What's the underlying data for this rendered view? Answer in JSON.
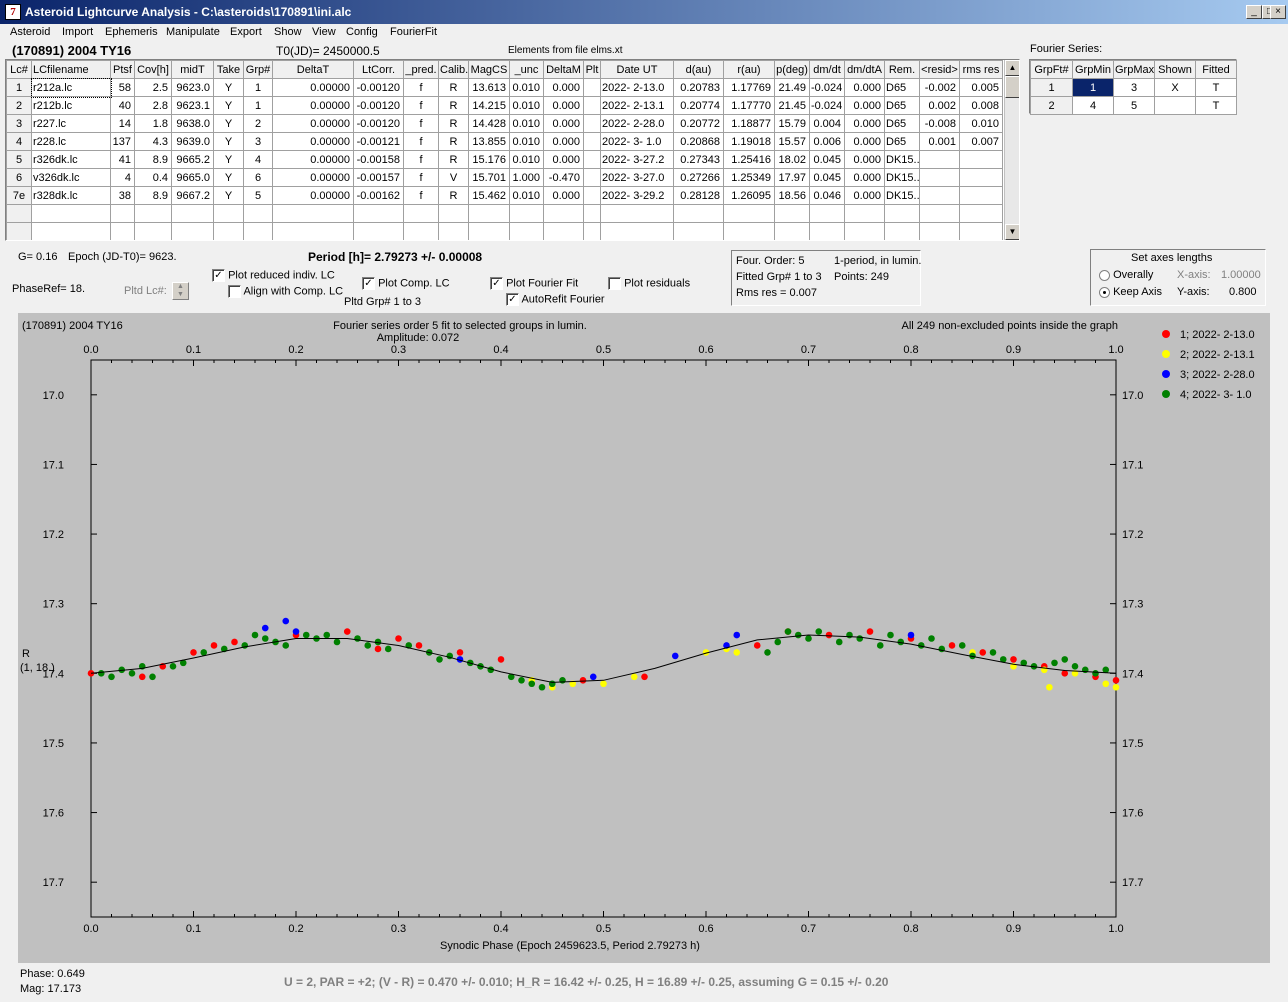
{
  "window": {
    "title": "Asteroid Lightcurve Analysis - C:\\asteroids\\170891\\ini.alc",
    "icon_letter": "7"
  },
  "menu": [
    "Asteroid",
    "Import",
    "Ephemeris",
    "Manipulate",
    "Export",
    "Show",
    "View",
    "Config",
    "FourierFit"
  ],
  "header": {
    "asteroid": "(170891) 2004 TY16",
    "t0": "T0(JD)= 2450000.5",
    "elements": "Elements from file elms.xt"
  },
  "lc_table": {
    "columns": [
      "Lc#",
      "LCfilename",
      "Ptsf",
      "Cov[h]",
      "midT",
      "Take",
      "Grp#",
      "DeltaT",
      "LtCorr.",
      "_pred.",
      "Calib.",
      "MagCS",
      "_unc",
      "DeltaM",
      "Plt",
      "Date UT",
      "d(au)",
      "r(au)",
      "p(deg)",
      "dm/dt",
      "dm/dtA",
      "Rem.",
      "<resid>",
      "rms res"
    ],
    "rows": [
      [
        "1",
        "r212a.lc",
        "58",
        "2.5",
        "9623.0",
        "Y",
        "1",
        "0.00000",
        "-0.00120",
        "f",
        "R",
        "13.613",
        "0.010",
        "0.000",
        "",
        "2022- 2-13.0",
        "0.20783",
        "1.17769",
        "21.49",
        "-0.024",
        "0.000",
        "D65",
        "-0.002",
        "0.005"
      ],
      [
        "2",
        "r212b.lc",
        "40",
        "2.8",
        "9623.1",
        "Y",
        "1",
        "0.00000",
        "-0.00120",
        "f",
        "R",
        "14.215",
        "0.010",
        "0.000",
        "",
        "2022- 2-13.1",
        "0.20774",
        "1.17770",
        "21.45",
        "-0.024",
        "0.000",
        "D65",
        "0.002",
        "0.008"
      ],
      [
        "3",
        "r227.lc",
        "14",
        "1.8",
        "9638.0",
        "Y",
        "2",
        "0.00000",
        "-0.00120",
        "f",
        "R",
        "14.428",
        "0.010",
        "0.000",
        "",
        "2022- 2-28.0",
        "0.20772",
        "1.18877",
        "15.79",
        "0.004",
        "0.000",
        "D65",
        "-0.008",
        "0.010"
      ],
      [
        "4",
        "r228.lc",
        "137",
        "4.3",
        "9639.0",
        "Y",
        "3",
        "0.00000",
        "-0.00121",
        "f",
        "R",
        "13.855",
        "0.010",
        "0.000",
        "",
        "2022- 3- 1.0",
        "0.20868",
        "1.19018",
        "15.57",
        "0.006",
        "0.000",
        "D65",
        "0.001",
        "0.007"
      ],
      [
        "5",
        "r326dk.lc",
        "41",
        "8.9",
        "9665.2",
        "Y",
        "4",
        "0.00000",
        "-0.00158",
        "f",
        "R",
        "15.176",
        "0.010",
        "0.000",
        "",
        "2022- 3-27.2",
        "0.27343",
        "1.25416",
        "18.02",
        "0.045",
        "0.000",
        "DK15..",
        "",
        ""
      ],
      [
        "6",
        "v326dk.lc",
        "4",
        "0.4",
        "9665.0",
        "Y",
        "6",
        "0.00000",
        "-0.00157",
        "f",
        "V",
        "15.701",
        "1.000",
        "-0.470",
        "",
        "2022- 3-27.0",
        "0.27266",
        "1.25349",
        "17.97",
        "0.045",
        "0.000",
        "DK15..",
        "",
        ""
      ],
      [
        "7e",
        "r328dk.lc",
        "38",
        "8.9",
        "9667.2",
        "Y",
        "5",
        "0.00000",
        "-0.00162",
        "f",
        "R",
        "15.462",
        "0.010",
        "0.000",
        "",
        "2022- 3-29.2",
        "0.28128",
        "1.26095",
        "18.56",
        "0.046",
        "0.000",
        "DK15..",
        "",
        ""
      ]
    ]
  },
  "fourier_series": {
    "title": "Fourier Series:",
    "columns": [
      "GrpFt#",
      "GrpMin",
      "GrpMax",
      "Shown",
      "Fitted"
    ],
    "rows": [
      [
        "1",
        "1",
        "3",
        "X",
        "T"
      ],
      [
        "2",
        "4",
        "5",
        "",
        "T"
      ]
    ]
  },
  "controls": {
    "g": "G= 0.16",
    "epoch": "Epoch (JD-T0)= 9623.",
    "period": "Period [h]= 2.79273 +/- 0.00008",
    "phaseref": "PhaseRef= 18.",
    "pltd_lc": "Pltd Lc#:",
    "plot_reduced": "Plot reduced indiv. LC",
    "align_comp": "Align with Comp. LC",
    "plot_comp": "Plot Comp. LC",
    "pltd_grp": "Pltd Grp#  1   to   3",
    "plot_fourier": "Plot Fourier Fit",
    "autorefit": "AutoRefit Fourier",
    "plot_residuals": "Plot residuals",
    "info": {
      "order": "Four. Order:  5",
      "period_mode": "1-period, in lumin.",
      "fitted": "Fitted Grp# 1 to 3",
      "points": "Points: 249",
      "rms": "Rms res     = 0.007"
    },
    "axes": {
      "title": "Set axes lengths",
      "overally": "Overally",
      "keep": "Keep Axis",
      "xaxis_label": "X-axis:",
      "xaxis_val": "1.00000",
      "yaxis_label": "Y-axis:",
      "yaxis_val": "0.800"
    }
  },
  "chart_data": {
    "type": "scatter",
    "title_left": "(170891) 2004 TY16",
    "title_center": "Fourier series order 5 fit to selected groups in lumin.",
    "amplitude": "Amplitude: 0.072",
    "title_right": "All 249 non-excluded points inside the graph",
    "xlabel": "Synodic Phase (Epoch 2459623.5, Period 2.79273 h)",
    "ylabel": [
      "R",
      "(1, 18.)"
    ],
    "xlim": [
      0,
      1
    ],
    "ylim": [
      17.75,
      16.95
    ],
    "xticks": [
      "0.0",
      "0.1",
      "0.2",
      "0.3",
      "0.4",
      "0.5",
      "0.6",
      "0.7",
      "0.8",
      "0.9",
      "1.0"
    ],
    "yticks": [
      "17.0",
      "17.1",
      "17.2",
      "17.3",
      "17.4",
      "17.5",
      "17.6",
      "17.7"
    ],
    "legend": [
      {
        "label": "1; 2022- 2-13.0",
        "color": "#ff0000"
      },
      {
        "label": "2; 2022- 2-13.1",
        "color": "#ffff00"
      },
      {
        "label": "3; 2022- 2-28.0",
        "color": "#0000ff"
      },
      {
        "label": "4; 2022- 3- 1.0",
        "color": "#008000"
      }
    ],
    "fit_curve": {
      "x": [
        0,
        0.05,
        0.1,
        0.15,
        0.2,
        0.25,
        0.3,
        0.35,
        0.4,
        0.45,
        0.5,
        0.55,
        0.6,
        0.65,
        0.7,
        0.75,
        0.8,
        0.85,
        0.9,
        0.95,
        1.0
      ],
      "y": [
        17.4,
        17.393,
        17.378,
        17.362,
        17.35,
        17.35,
        17.36,
        17.377,
        17.398,
        17.413,
        17.41,
        17.393,
        17.371,
        17.352,
        17.345,
        17.348,
        17.358,
        17.373,
        17.387,
        17.396,
        17.4
      ]
    },
    "series": [
      {
        "name": "1; 2022- 2-13.0",
        "color": "#ff0000",
        "x": [
          0.0,
          0.05,
          0.07,
          0.1,
          0.12,
          0.14,
          0.2,
          0.25,
          0.28,
          0.3,
          0.32,
          0.36,
          0.4,
          0.48,
          0.54,
          0.65,
          0.68,
          0.72,
          0.76,
          0.8,
          0.84,
          0.87,
          0.9,
          0.93,
          0.95,
          0.98,
          1.0
        ],
        "y": [
          17.4,
          17.405,
          17.39,
          17.37,
          17.36,
          17.355,
          17.345,
          17.34,
          17.365,
          17.35,
          17.36,
          17.37,
          17.38,
          17.41,
          17.405,
          17.36,
          17.34,
          17.345,
          17.34,
          17.35,
          17.36,
          17.37,
          17.38,
          17.39,
          17.4,
          17.405,
          17.41
        ]
      },
      {
        "name": "2; 2022- 2-13.1",
        "color": "#ffff00",
        "x": [
          0.43,
          0.45,
          0.47,
          0.5,
          0.53,
          0.6,
          0.62,
          0.63,
          0.86,
          0.9,
          0.93,
          0.935,
          0.96,
          0.99,
          1.0
        ],
        "y": [
          17.41,
          17.42,
          17.415,
          17.415,
          17.405,
          17.37,
          17.365,
          17.37,
          17.37,
          17.39,
          17.395,
          17.42,
          17.4,
          17.415,
          17.42
        ]
      },
      {
        "name": "3; 2022- 2-28.0",
        "color": "#0000ff",
        "x": [
          0.17,
          0.19,
          0.2,
          0.36,
          0.49,
          0.57,
          0.62,
          0.63,
          0.8
        ],
        "y": [
          17.335,
          17.325,
          17.34,
          17.38,
          17.405,
          17.375,
          17.36,
          17.345,
          17.345
        ]
      },
      {
        "name": "4; 2022- 3- 1.0",
        "color": "#008000",
        "x": [
          0.01,
          0.02,
          0.03,
          0.04,
          0.05,
          0.06,
          0.08,
          0.09,
          0.11,
          0.13,
          0.15,
          0.16,
          0.17,
          0.18,
          0.19,
          0.21,
          0.22,
          0.23,
          0.24,
          0.26,
          0.27,
          0.28,
          0.29,
          0.31,
          0.33,
          0.34,
          0.35,
          0.37,
          0.38,
          0.39,
          0.41,
          0.42,
          0.43,
          0.44,
          0.45,
          0.46,
          0.66,
          0.67,
          0.68,
          0.69,
          0.7,
          0.71,
          0.73,
          0.74,
          0.75,
          0.77,
          0.78,
          0.79,
          0.81,
          0.82,
          0.83,
          0.85,
          0.86,
          0.88,
          0.89,
          0.91,
          0.92,
          0.94,
          0.95,
          0.96,
          0.97,
          0.98,
          0.99
        ],
        "y": [
          17.4,
          17.405,
          17.395,
          17.4,
          17.39,
          17.405,
          17.39,
          17.385,
          17.37,
          17.365,
          17.36,
          17.345,
          17.35,
          17.355,
          17.36,
          17.345,
          17.35,
          17.345,
          17.355,
          17.35,
          17.36,
          17.355,
          17.365,
          17.36,
          17.37,
          17.38,
          17.375,
          17.385,
          17.39,
          17.395,
          17.405,
          17.41,
          17.415,
          17.42,
          17.415,
          17.41,
          17.37,
          17.355,
          17.34,
          17.345,
          17.35,
          17.34,
          17.355,
          17.345,
          17.35,
          17.36,
          17.345,
          17.355,
          17.36,
          17.35,
          17.365,
          17.36,
          17.375,
          17.37,
          17.38,
          17.385,
          17.39,
          17.385,
          17.38,
          17.39,
          17.395,
          17.4,
          17.395
        ]
      }
    ]
  },
  "status": {
    "phase": "Phase:  0.649",
    "mag": "Mag:    17.173",
    "formula": "U = 2, PAR = +2; (V - R) = 0.470 +/- 0.010; H_R = 16.42 +/- 0.25, H = 16.89 +/- 0.25, assuming G = 0.15 +/- 0.20"
  }
}
